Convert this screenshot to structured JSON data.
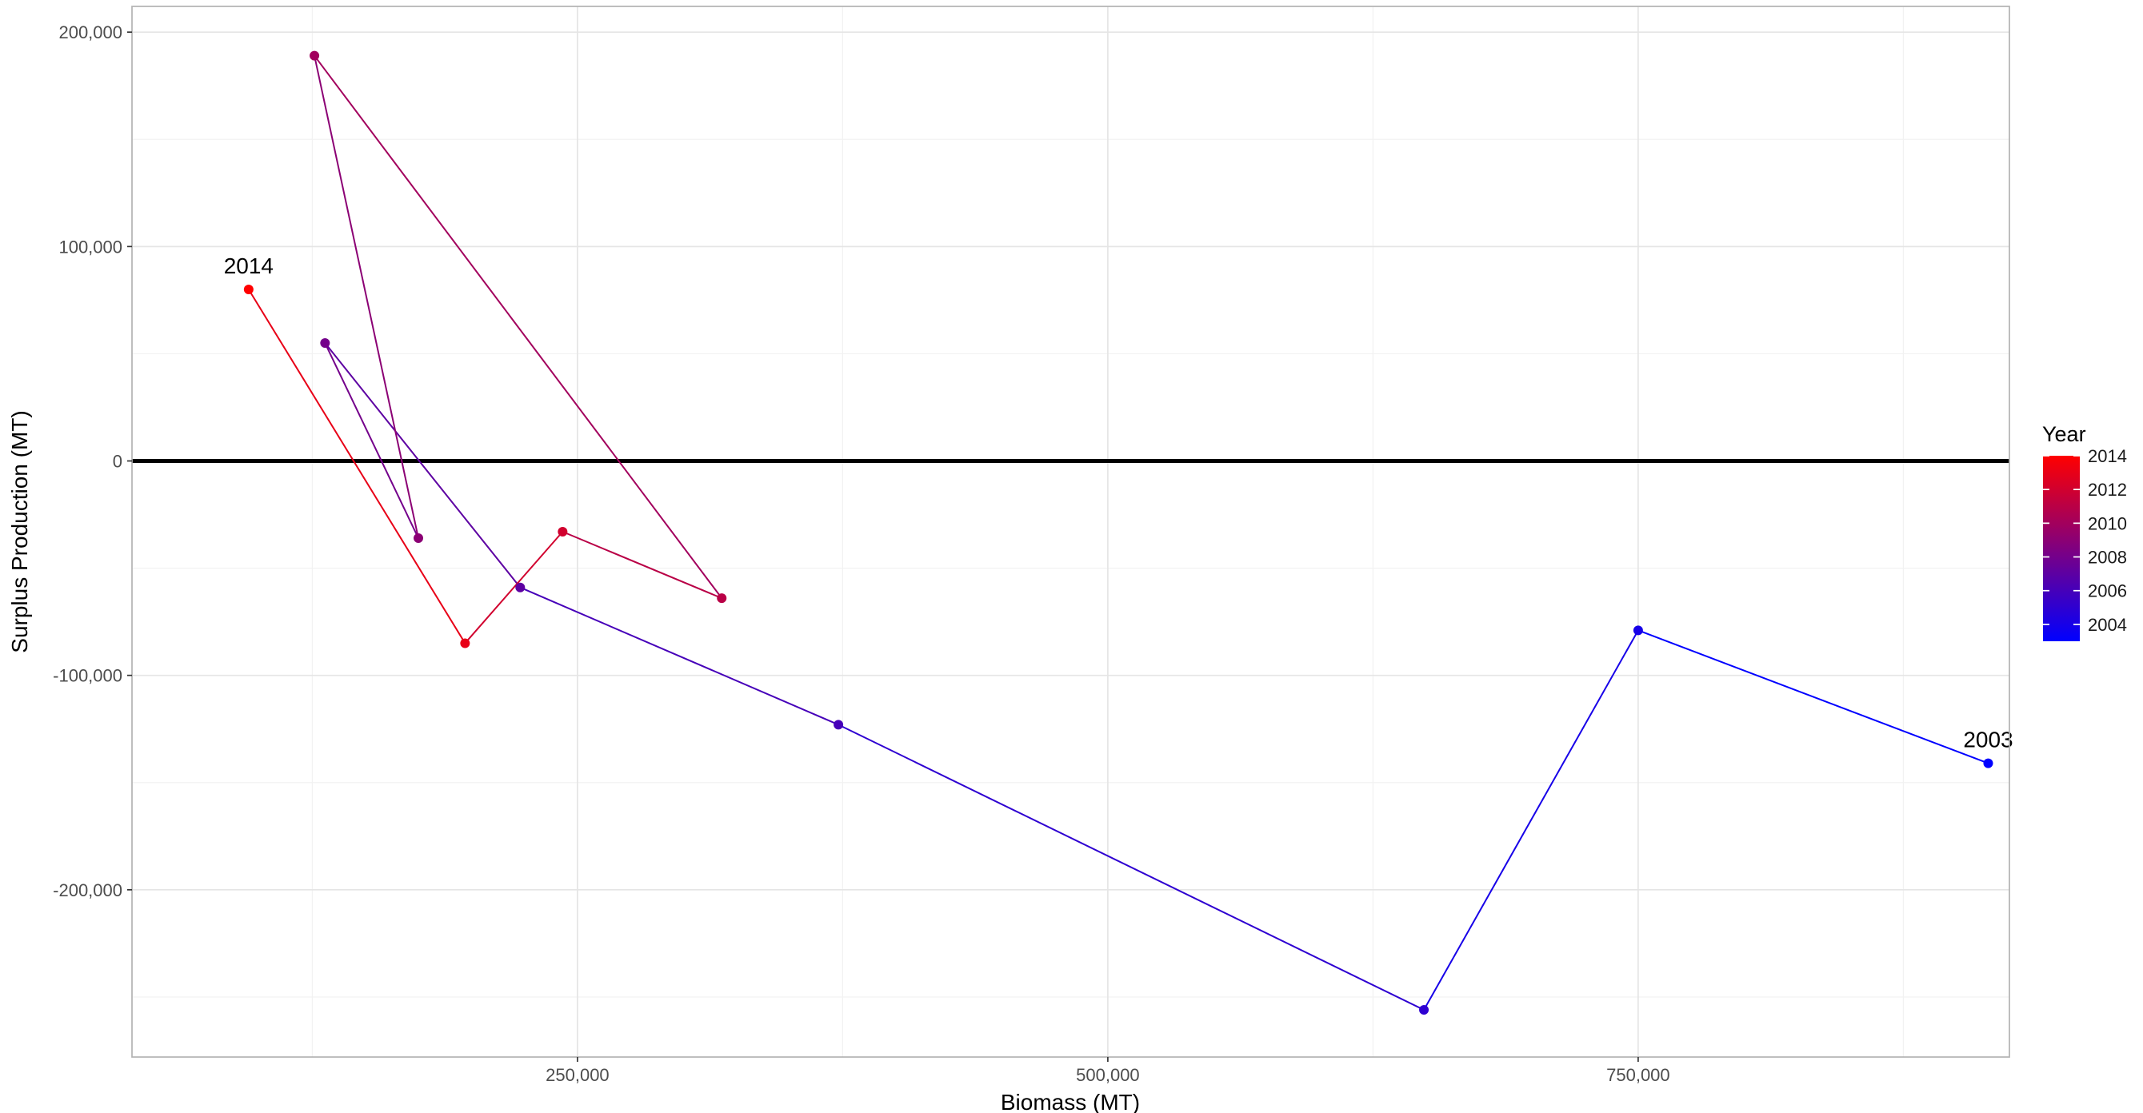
{
  "chart_data": {
    "type": "line",
    "title": "",
    "xlabel": "Biomass (MT)",
    "ylabel": "Surplus Production (MT)",
    "xlim": [
      40000,
      925000
    ],
    "ylim": [
      -278000,
      212000
    ],
    "x_ticks": [
      250000,
      500000,
      750000
    ],
    "x_tick_labels": [
      "250,000",
      "500,000",
      "750,000"
    ],
    "y_ticks": [
      -200000,
      -100000,
      0,
      100000,
      200000
    ],
    "y_tick_labels": [
      "-200,000",
      "-100,000",
      "0",
      "100,000",
      "200,000"
    ],
    "grid": true,
    "reference_line_y": 0,
    "color_scale": {
      "name": "Year",
      "low_color": "#0000ff",
      "high_color": "#ff0000",
      "range": [
        2003,
        2014
      ],
      "breaks": [
        2004,
        2006,
        2008,
        2010,
        2012,
        2014
      ],
      "position": "right"
    },
    "points": [
      {
        "year": 2003,
        "x": 915000,
        "y": -141000
      },
      {
        "year": 2004,
        "x": 750000,
        "y": -79000
      },
      {
        "year": 2005,
        "x": 649000,
        "y": -256000
      },
      {
        "year": 2006,
        "x": 373000,
        "y": -123000
      },
      {
        "year": 2007,
        "x": 223000,
        "y": -59000
      },
      {
        "year": 2008,
        "x": 131000,
        "y": 55000
      },
      {
        "year": 2009,
        "x": 175000,
        "y": -36000
      },
      {
        "year": 2010,
        "x": 126000,
        "y": 189000
      },
      {
        "year": 2011,
        "x": 318000,
        "y": -64000
      },
      {
        "year": 2012,
        "x": 243000,
        "y": -33000
      },
      {
        "year": 2013,
        "x": 197000,
        "y": -85000
      },
      {
        "year": 2014,
        "x": 95000,
        "y": 80000
      }
    ],
    "annotations": [
      {
        "text": "2003",
        "year": 2003
      },
      {
        "text": "2014",
        "year": 2014
      }
    ]
  }
}
